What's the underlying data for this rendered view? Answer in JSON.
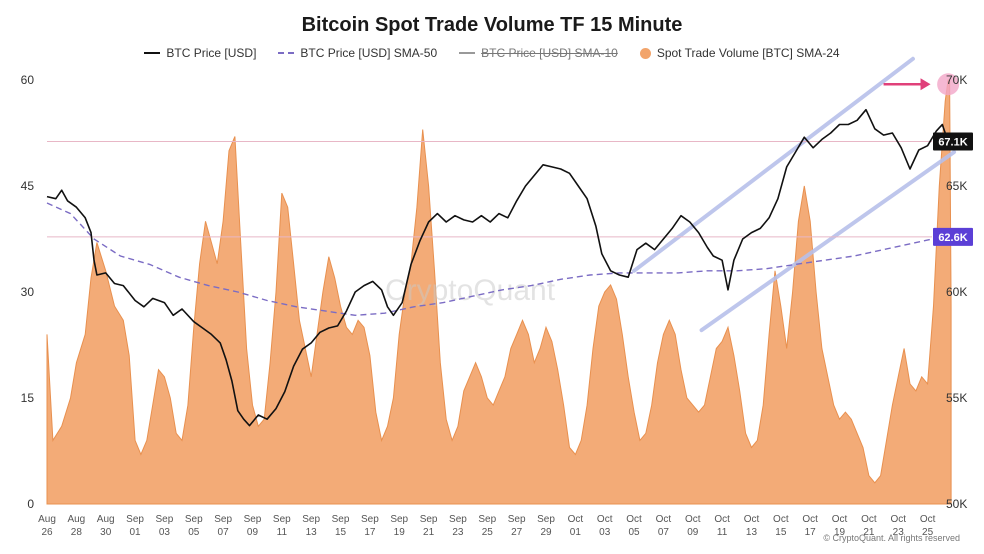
{
  "chart_data": {
    "type": "line",
    "title": "Bitcoin Spot Trade Volume TF 15 Minute",
    "legend": [
      {
        "label": "BTC Price [USD]",
        "style": "solid",
        "color": "#111111"
      },
      {
        "label": "BTC Price [USD] SMA-50",
        "style": "dashed",
        "color": "#7b6cc4"
      },
      {
        "label": "BTC Price [USD] SMA-10",
        "style": "solid-disabled",
        "color": "#999999"
      },
      {
        "label": "Spot Trade Volume [BTC] SMA-24",
        "style": "area",
        "color": "#f2a46b"
      }
    ],
    "y_left": {
      "ticks": [
        "0",
        "15",
        "30",
        "45",
        "60"
      ],
      "range": [
        0,
        60
      ]
    },
    "y_right": {
      "ticks": [
        "50K",
        "55K",
        "60K",
        "65K",
        "70K"
      ],
      "range": [
        50000,
        70000
      ]
    },
    "x_ticks": [
      [
        "Aug",
        "26"
      ],
      [
        "Aug",
        "28"
      ],
      [
        "Aug",
        "30"
      ],
      [
        "Sep",
        "01"
      ],
      [
        "Sep",
        "03"
      ],
      [
        "Sep",
        "05"
      ],
      [
        "Sep",
        "07"
      ],
      [
        "Sep",
        "09"
      ],
      [
        "Sep",
        "11"
      ],
      [
        "Sep",
        "13"
      ],
      [
        "Sep",
        "15"
      ],
      [
        "Sep",
        "17"
      ],
      [
        "Sep",
        "19"
      ],
      [
        "Sep",
        "21"
      ],
      [
        "Sep",
        "23"
      ],
      [
        "Sep",
        "25"
      ],
      [
        "Sep",
        "27"
      ],
      [
        "Sep",
        "29"
      ],
      [
        "Oct",
        "01"
      ],
      [
        "Oct",
        "03"
      ],
      [
        "Oct",
        "05"
      ],
      [
        "Oct",
        "07"
      ],
      [
        "Oct",
        "09"
      ],
      [
        "Oct",
        "11"
      ],
      [
        "Oct",
        "13"
      ],
      [
        "Oct",
        "15"
      ],
      [
        "Oct",
        "17"
      ],
      [
        "Oct",
        "19"
      ],
      [
        "Oct",
        "21"
      ],
      [
        "Oct",
        "23"
      ],
      [
        "Oct",
        "25"
      ]
    ],
    "price_labels": [
      {
        "text": "67.1K",
        "value": 67100,
        "bg": "#111111",
        "fg": "#ffffff"
      },
      {
        "text": "62.6K",
        "value": 62600,
        "bg": "#5b3fd6",
        "fg": "#ffffff"
      }
    ],
    "btc_price": [
      [
        0,
        64500
      ],
      [
        0.3,
        64400
      ],
      [
        0.5,
        64800
      ],
      [
        0.7,
        64300
      ],
      [
        1,
        64000
      ],
      [
        1.3,
        63500
      ],
      [
        1.5,
        62800
      ],
      [
        1.6,
        61500
      ],
      [
        1.7,
        60800
      ],
      [
        2,
        60900
      ],
      [
        2.3,
        60400
      ],
      [
        2.6,
        60300
      ],
      [
        3,
        59600
      ],
      [
        3.3,
        59300
      ],
      [
        3.6,
        59700
      ],
      [
        4,
        59500
      ],
      [
        4.3,
        58900
      ],
      [
        4.6,
        59200
      ],
      [
        5,
        58600
      ],
      [
        5.3,
        58300
      ],
      [
        5.6,
        58000
      ],
      [
        5.9,
        57600
      ],
      [
        6.1,
        56800
      ],
      [
        6.3,
        55800
      ],
      [
        6.5,
        54400
      ],
      [
        6.7,
        54000
      ],
      [
        6.9,
        53700
      ],
      [
        7.2,
        54200
      ],
      [
        7.5,
        54000
      ],
      [
        7.8,
        54500
      ],
      [
        8.1,
        55300
      ],
      [
        8.4,
        56500
      ],
      [
        8.7,
        57300
      ],
      [
        9,
        57600
      ],
      [
        9.3,
        58100
      ],
      [
        9.6,
        58300
      ],
      [
        9.9,
        58400
      ],
      [
        10.2,
        59100
      ],
      [
        10.5,
        60000
      ],
      [
        10.8,
        60300
      ],
      [
        11.1,
        60500
      ],
      [
        11.4,
        60100
      ],
      [
        11.6,
        59300
      ],
      [
        11.8,
        58900
      ],
      [
        12.1,
        59500
      ],
      [
        12.4,
        61300
      ],
      [
        12.7,
        62400
      ],
      [
        13,
        63300
      ],
      [
        13.3,
        63700
      ],
      [
        13.6,
        63300
      ],
      [
        13.9,
        63600
      ],
      [
        14.2,
        63400
      ],
      [
        14.5,
        63300
      ],
      [
        14.8,
        63600
      ],
      [
        15.1,
        63300
      ],
      [
        15.4,
        63700
      ],
      [
        15.7,
        63500
      ],
      [
        16,
        64300
      ],
      [
        16.3,
        65000
      ],
      [
        16.6,
        65500
      ],
      [
        16.9,
        66000
      ],
      [
        17.2,
        65900
      ],
      [
        17.5,
        65800
      ],
      [
        17.8,
        65600
      ],
      [
        18.1,
        65000
      ],
      [
        18.4,
        64400
      ],
      [
        18.7,
        63100
      ],
      [
        18.9,
        61800
      ],
      [
        19.2,
        61000
      ],
      [
        19.5,
        60800
      ],
      [
        19.8,
        60700
      ],
      [
        20.1,
        62000
      ],
      [
        20.4,
        62300
      ],
      [
        20.7,
        62000
      ],
      [
        21,
        62500
      ],
      [
        21.3,
        63000
      ],
      [
        21.6,
        63600
      ],
      [
        21.9,
        63300
      ],
      [
        22.2,
        62800
      ],
      [
        22.5,
        62100
      ],
      [
        22.7,
        61700
      ],
      [
        23,
        61500
      ],
      [
        23.2,
        60100
      ],
      [
        23.4,
        61500
      ],
      [
        23.7,
        62500
      ],
      [
        24,
        62800
      ],
      [
        24.3,
        63000
      ],
      [
        24.6,
        63500
      ],
      [
        24.9,
        64400
      ],
      [
        25.2,
        65900
      ],
      [
        25.5,
        66600
      ],
      [
        25.8,
        67300
      ],
      [
        26.1,
        66800
      ],
      [
        26.4,
        67200
      ],
      [
        26.7,
        67500
      ],
      [
        27,
        67900
      ],
      [
        27.3,
        67900
      ],
      [
        27.6,
        68100
      ],
      [
        27.9,
        68600
      ],
      [
        28.2,
        67700
      ],
      [
        28.5,
        67400
      ],
      [
        28.8,
        67500
      ],
      [
        29.1,
        66800
      ],
      [
        29.4,
        65800
      ],
      [
        29.7,
        66700
      ],
      [
        30,
        66900
      ],
      [
        30.3,
        67600
      ],
      [
        30.5,
        67900
      ],
      [
        30.7,
        67100
      ]
    ],
    "btc_sma50": [
      [
        0,
        64200
      ],
      [
        0.8,
        63700
      ],
      [
        1.6,
        62500
      ],
      [
        2.5,
        61700
      ],
      [
        3.5,
        61300
      ],
      [
        4.5,
        60700
      ],
      [
        5.5,
        60300
      ],
      [
        6.5,
        60000
      ],
      [
        7.5,
        59600
      ],
      [
        8.5,
        59300
      ],
      [
        9.5,
        59100
      ],
      [
        10.5,
        58900
      ],
      [
        11.5,
        59000
      ],
      [
        12.5,
        59300
      ],
      [
        13.5,
        59500
      ],
      [
        14.5,
        59800
      ],
      [
        15.5,
        60100
      ],
      [
        16.5,
        60300
      ],
      [
        17.5,
        60600
      ],
      [
        18.5,
        60800
      ],
      [
        19.5,
        60900
      ],
      [
        20.5,
        60900
      ],
      [
        21.5,
        60900
      ],
      [
        22.5,
        61000
      ],
      [
        23.5,
        61000
      ],
      [
        24.5,
        61100
      ],
      [
        25.5,
        61300
      ],
      [
        26.5,
        61500
      ],
      [
        27.5,
        61700
      ],
      [
        28.5,
        62000
      ],
      [
        29.5,
        62300
      ],
      [
        30.5,
        62600
      ]
    ],
    "spot_volume": [
      [
        0,
        24
      ],
      [
        0.2,
        9
      ],
      [
        0.5,
        11
      ],
      [
        0.8,
        15
      ],
      [
        1,
        20
      ],
      [
        1.3,
        24
      ],
      [
        1.5,
        32
      ],
      [
        1.7,
        37
      ],
      [
        2,
        33
      ],
      [
        2.3,
        28
      ],
      [
        2.6,
        26
      ],
      [
        2.8,
        21
      ],
      [
        3,
        9
      ],
      [
        3.2,
        7
      ],
      [
        3.4,
        9
      ],
      [
        3.6,
        14
      ],
      [
        3.8,
        19
      ],
      [
        4,
        18
      ],
      [
        4.2,
        15
      ],
      [
        4.4,
        10
      ],
      [
        4.6,
        9
      ],
      [
        4.8,
        14
      ],
      [
        5,
        25
      ],
      [
        5.2,
        34
      ],
      [
        5.4,
        40
      ],
      [
        5.6,
        37
      ],
      [
        5.8,
        34
      ],
      [
        6,
        40
      ],
      [
        6.2,
        50
      ],
      [
        6.4,
        52
      ],
      [
        6.6,
        37
      ],
      [
        6.8,
        22
      ],
      [
        7,
        14
      ],
      [
        7.2,
        11
      ],
      [
        7.4,
        12
      ],
      [
        7.6,
        20
      ],
      [
        7.8,
        30
      ],
      [
        8,
        44
      ],
      [
        8.2,
        42
      ],
      [
        8.4,
        34
      ],
      [
        8.6,
        26
      ],
      [
        8.8,
        22
      ],
      [
        9,
        18
      ],
      [
        9.2,
        24
      ],
      [
        9.4,
        30
      ],
      [
        9.6,
        35
      ],
      [
        9.8,
        32
      ],
      [
        10,
        28
      ],
      [
        10.2,
        25
      ],
      [
        10.4,
        24
      ],
      [
        10.6,
        26
      ],
      [
        10.8,
        25
      ],
      [
        11,
        21
      ],
      [
        11.2,
        13
      ],
      [
        11.4,
        9
      ],
      [
        11.6,
        11
      ],
      [
        11.8,
        15
      ],
      [
        12,
        24
      ],
      [
        12.2,
        30
      ],
      [
        12.4,
        34
      ],
      [
        12.6,
        42
      ],
      [
        12.8,
        53
      ],
      [
        13,
        45
      ],
      [
        13.2,
        33
      ],
      [
        13.4,
        20
      ],
      [
        13.6,
        12
      ],
      [
        13.8,
        9
      ],
      [
        14,
        11
      ],
      [
        14.2,
        16
      ],
      [
        14.4,
        18
      ],
      [
        14.6,
        20
      ],
      [
        14.8,
        18
      ],
      [
        15,
        15
      ],
      [
        15.2,
        14
      ],
      [
        15.4,
        16
      ],
      [
        15.6,
        18
      ],
      [
        15.8,
        22
      ],
      [
        16,
        24
      ],
      [
        16.2,
        26
      ],
      [
        16.4,
        24
      ],
      [
        16.6,
        20
      ],
      [
        16.8,
        22
      ],
      [
        17,
        25
      ],
      [
        17.2,
        23
      ],
      [
        17.4,
        19
      ],
      [
        17.6,
        14
      ],
      [
        17.8,
        8
      ],
      [
        18,
        7
      ],
      [
        18.2,
        9
      ],
      [
        18.4,
        14
      ],
      [
        18.6,
        22
      ],
      [
        18.8,
        28
      ],
      [
        19,
        30
      ],
      [
        19.2,
        31
      ],
      [
        19.4,
        29
      ],
      [
        19.6,
        24
      ],
      [
        19.8,
        18
      ],
      [
        20,
        13
      ],
      [
        20.2,
        9
      ],
      [
        20.4,
        10
      ],
      [
        20.6,
        14
      ],
      [
        20.8,
        20
      ],
      [
        21,
        24
      ],
      [
        21.2,
        26
      ],
      [
        21.4,
        24
      ],
      [
        21.6,
        19
      ],
      [
        21.8,
        15
      ],
      [
        22,
        14
      ],
      [
        22.2,
        13
      ],
      [
        22.4,
        14
      ],
      [
        22.6,
        18
      ],
      [
        22.8,
        22
      ],
      [
        23,
        23
      ],
      [
        23.2,
        25
      ],
      [
        23.4,
        21
      ],
      [
        23.6,
        16
      ],
      [
        23.8,
        10
      ],
      [
        24,
        8
      ],
      [
        24.2,
        9
      ],
      [
        24.4,
        14
      ],
      [
        24.6,
        24
      ],
      [
        24.8,
        33
      ],
      [
        25,
        28
      ],
      [
        25.2,
        22
      ],
      [
        25.4,
        30
      ],
      [
        25.6,
        40
      ],
      [
        25.8,
        45
      ],
      [
        26,
        40
      ],
      [
        26.2,
        30
      ],
      [
        26.4,
        22
      ],
      [
        26.6,
        18
      ],
      [
        26.8,
        14
      ],
      [
        27,
        12
      ],
      [
        27.2,
        13
      ],
      [
        27.4,
        12
      ],
      [
        27.6,
        10
      ],
      [
        27.8,
        8
      ],
      [
        28,
        4
      ],
      [
        28.2,
        3
      ],
      [
        28.4,
        4
      ],
      [
        28.6,
        9
      ],
      [
        28.8,
        14
      ],
      [
        29,
        18
      ],
      [
        29.2,
        22
      ],
      [
        29.4,
        17
      ],
      [
        29.6,
        16
      ],
      [
        29.8,
        18
      ],
      [
        30,
        17
      ],
      [
        30.2,
        28
      ],
      [
        30.4,
        45
      ],
      [
        30.6,
        57
      ],
      [
        30.7,
        60
      ],
      [
        30.75,
        60
      ],
      [
        30.8,
        28
      ]
    ],
    "annotations": [
      {
        "type": "channel-line",
        "color": "#b8c0ea",
        "from": [
          20,
          61000
        ],
        "to": [
          29.5,
          71000
        ]
      },
      {
        "type": "channel-line",
        "color": "#b8c0ea",
        "from": [
          22.3,
          58200
        ],
        "to": [
          30.9,
          66600
        ]
      },
      {
        "type": "hline",
        "value": 67100,
        "color": "#e8b7c6"
      },
      {
        "type": "hline",
        "value": 62600,
        "color": "#e8b7c6"
      },
      {
        "type": "arrow",
        "color": "#e0407a",
        "from": [
          28.5,
          69800
        ],
        "to": [
          30.1,
          69800
        ]
      },
      {
        "type": "circle",
        "color": "#f2a6c8",
        "at": [
          30.7,
          69800
        ]
      }
    ],
    "watermark": "CryptoQuant",
    "copyright": "© CryptoQuant. All rights reserved"
  }
}
